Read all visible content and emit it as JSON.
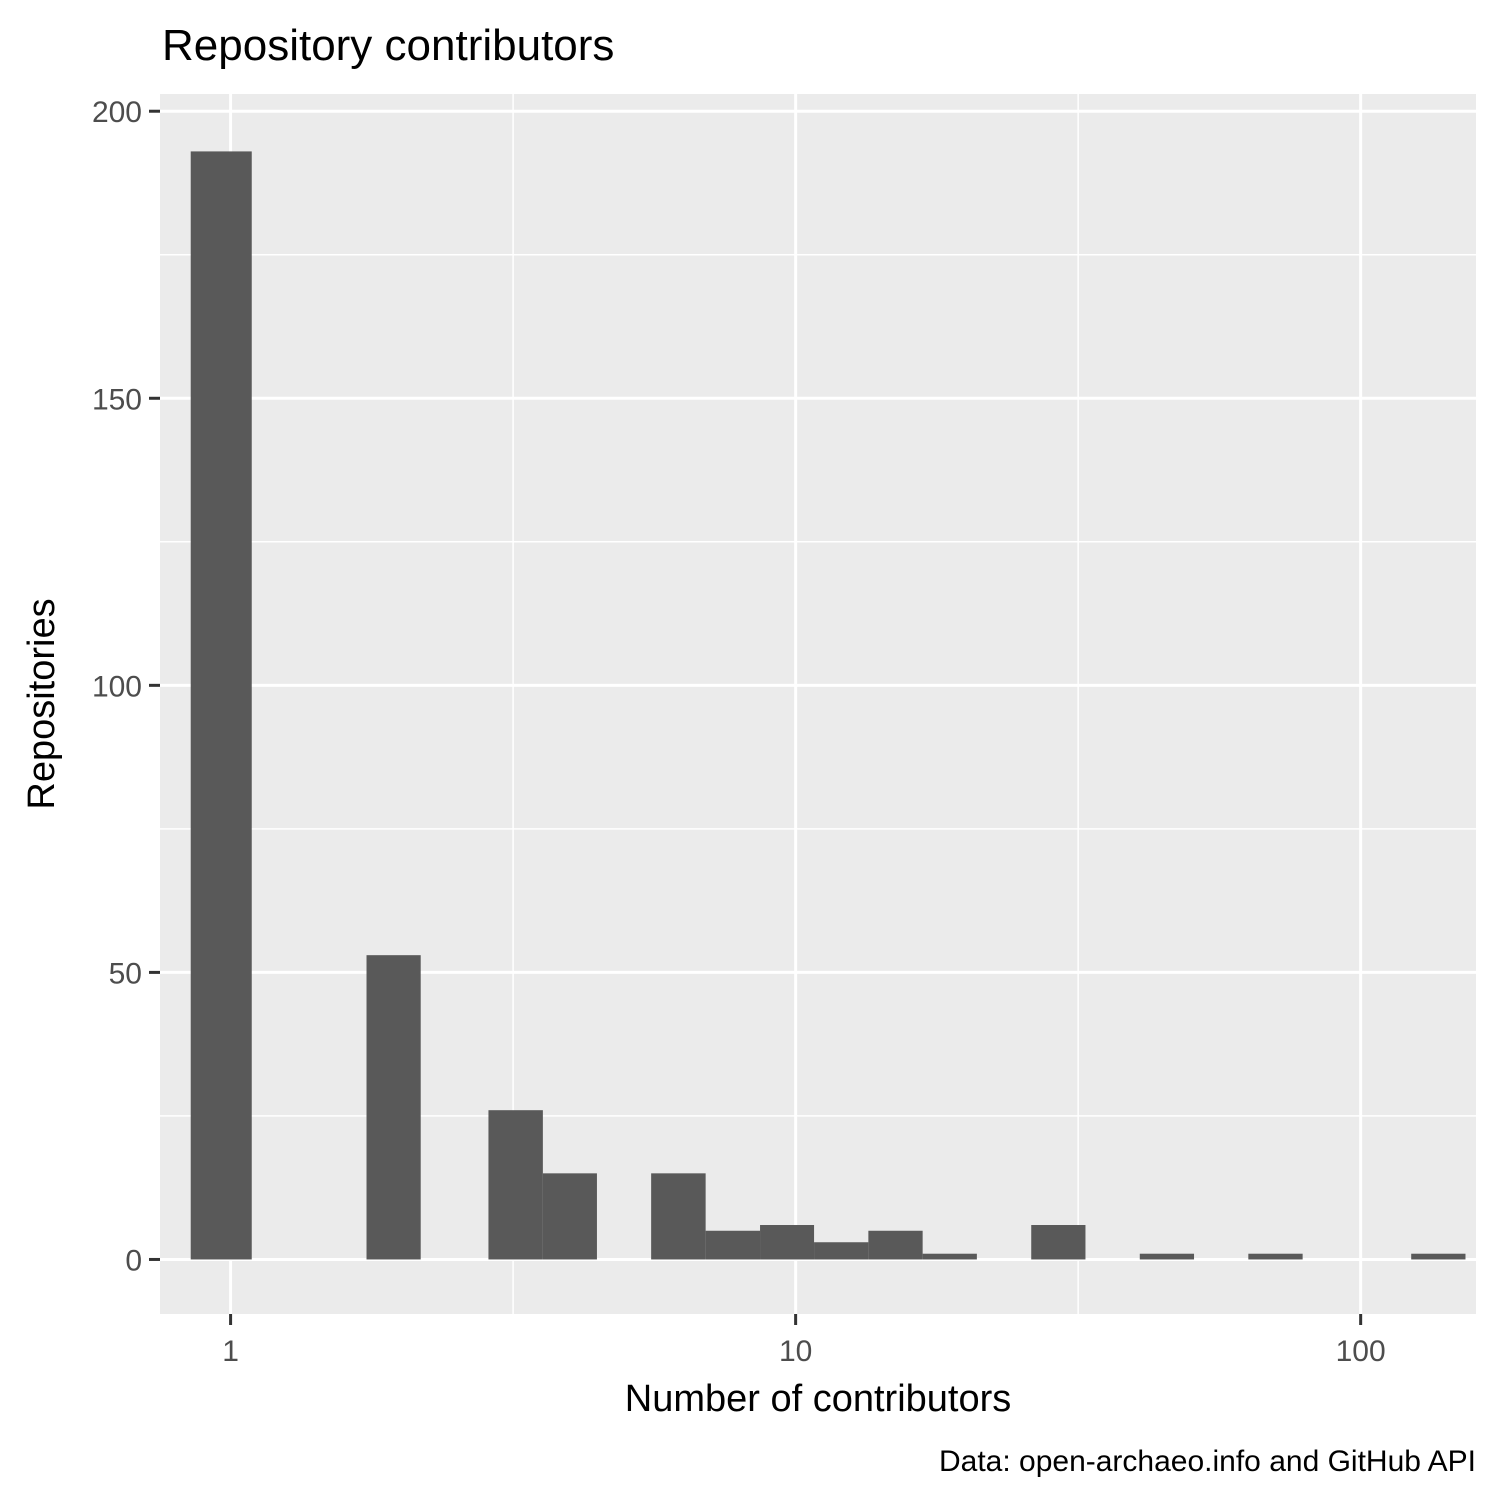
{
  "chart_data": {
    "type": "bar",
    "title": "Repository contributors",
    "xlabel": "Number of contributors",
    "ylabel": "Repositories",
    "caption": "Data: open-archaeo.info and GitHub API",
    "x_scale": "log10",
    "xlim": [
      0.75,
      160
    ],
    "ylim": [
      -9.5,
      203
    ],
    "x_ticks": [
      1,
      10,
      100
    ],
    "x_tick_labels": [
      "1",
      "10",
      "100"
    ],
    "y_ticks": [
      0,
      50,
      100,
      150,
      200
    ],
    "y_tick_labels": [
      "0",
      "50",
      "100",
      "150",
      "200"
    ],
    "grid": true,
    "bar_color": "#595959",
    "panel_background": "#ebebeb",
    "gridline_color": "#ffffff",
    "bins": [
      {
        "x_min": 0.85,
        "x_max": 1.09,
        "count": 193
      },
      {
        "x_min": 1.74,
        "x_max": 2.17,
        "count": 53
      },
      {
        "x_min": 2.86,
        "x_max": 3.57,
        "count": 26
      },
      {
        "x_min": 3.57,
        "x_max": 4.45,
        "count": 15
      },
      {
        "x_min": 4.45,
        "x_max": 5.55,
        "count": 0
      },
      {
        "x_min": 5.55,
        "x_max": 6.93,
        "count": 15
      },
      {
        "x_min": 6.93,
        "x_max": 8.65,
        "count": 5
      },
      {
        "x_min": 8.65,
        "x_max": 10.78,
        "count": 6
      },
      {
        "x_min": 10.78,
        "x_max": 13.45,
        "count": 3
      },
      {
        "x_min": 13.45,
        "x_max": 16.78,
        "count": 5
      },
      {
        "x_min": 16.78,
        "x_max": 20.93,
        "count": 1
      },
      {
        "x_min": 20.93,
        "x_max": 26.12,
        "count": 0
      },
      {
        "x_min": 26.12,
        "x_max": 32.58,
        "count": 6
      },
      {
        "x_min": 32.58,
        "x_max": 40.65,
        "count": 0
      },
      {
        "x_min": 40.65,
        "x_max": 50.71,
        "count": 1
      },
      {
        "x_min": 50.71,
        "x_max": 63.27,
        "count": 0
      },
      {
        "x_min": 63.27,
        "x_max": 78.94,
        "count": 1
      },
      {
        "x_min": 78.94,
        "x_max": 98.48,
        "count": 0
      },
      {
        "x_min": 98.48,
        "x_max": 122.87,
        "count": 0
      },
      {
        "x_min": 122.87,
        "x_max": 153.29,
        "count": 1
      }
    ]
  }
}
